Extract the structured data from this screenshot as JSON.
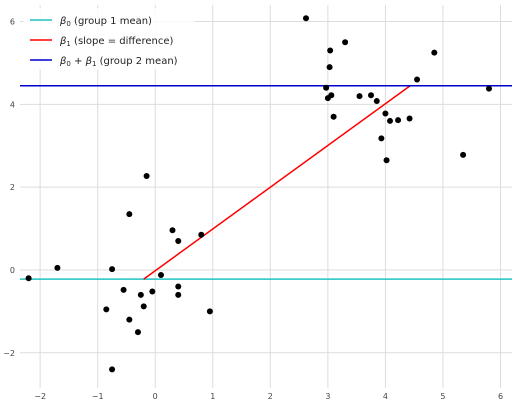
{
  "chart_data": {
    "type": "scatter",
    "xlim": [
      -2.35,
      6.2
    ],
    "ylim": [
      -2.85,
      6.4
    ],
    "x_ticks": [
      -2,
      -1,
      0,
      1,
      2,
      3,
      4,
      5,
      6
    ],
    "y_ticks": [
      -2,
      0,
      2,
      4,
      6
    ],
    "x_tick_labels": [
      "−2",
      "−1",
      "0",
      "1",
      "2",
      "3",
      "4",
      "5",
      "6"
    ],
    "y_tick_labels": [
      "−2",
      "0",
      "2",
      "4",
      "6"
    ],
    "grid": true,
    "legend_placement": "top-left",
    "points": {
      "color": "#000000",
      "x": [
        -2.2,
        -1.7,
        -0.75,
        -0.85,
        -0.75,
        -0.55,
        -0.45,
        -0.45,
        -0.3,
        -0.25,
        -0.2,
        -0.15,
        -0.05,
        0.1,
        0.3,
        0.4,
        0.4,
        0.4,
        0.8,
        0.95,
        2.62,
        2.97,
        3.0,
        3.03,
        3.04,
        3.06,
        3.1,
        3.3,
        3.55,
        3.75,
        3.85,
        3.93,
        4.0,
        4.02,
        4.08,
        4.22,
        4.42,
        4.55,
        4.85,
        5.35,
        5.8
      ],
      "y": [
        -0.2,
        0.05,
        0.02,
        -0.95,
        -2.4,
        -0.48,
        -1.2,
        1.35,
        -1.5,
        -0.6,
        -0.88,
        2.27,
        -0.52,
        -0.12,
        0.96,
        -0.4,
        -0.6,
        0.7,
        0.85,
        -1.0,
        6.08,
        4.4,
        4.15,
        4.9,
        5.3,
        4.22,
        3.7,
        5.5,
        4.2,
        4.22,
        4.08,
        3.18,
        3.78,
        2.65,
        3.6,
        3.62,
        3.66,
        4.6,
        5.25,
        2.78,
        4.38
      ]
    },
    "lines": [
      {
        "name": "β0 (group 1 mean)",
        "kind": "horizontal",
        "y": -0.22,
        "color": "#20c2c2"
      },
      {
        "name": "β1 (slope = difference)",
        "kind": "segment",
        "x": [
          -0.2,
          4.43
        ],
        "y": [
          -0.22,
          4.45
        ],
        "color": "#ff0000"
      },
      {
        "name": "β0 + β1 (group 2 mean)",
        "kind": "horizontal",
        "y": 4.45,
        "color": "#0000cc"
      }
    ]
  }
}
